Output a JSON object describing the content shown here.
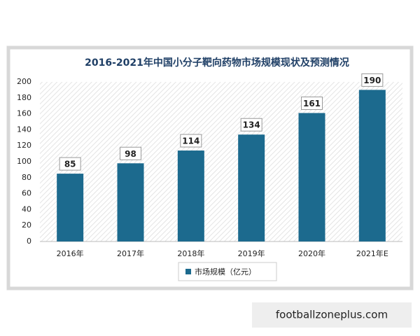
{
  "chart_data": {
    "type": "bar",
    "title": "2016-2021年中国小分子靶向药物市场规模现状及预测情况",
    "categories": [
      "2016年",
      "2017年",
      "2018年",
      "2019年",
      "2020年",
      "2021年E"
    ],
    "series": [
      {
        "name": "市场规模（亿元）",
        "color": "#1c6a8e",
        "values": [
          85,
          98,
          114,
          134,
          161,
          190
        ]
      }
    ],
    "ylim": [
      0,
      200
    ],
    "yticks": [
      0,
      20,
      40,
      60,
      80,
      100,
      120,
      140,
      160,
      180,
      200
    ],
    "grid": false,
    "legend": "bottom"
  },
  "watermark": "footballzoneplus.com"
}
